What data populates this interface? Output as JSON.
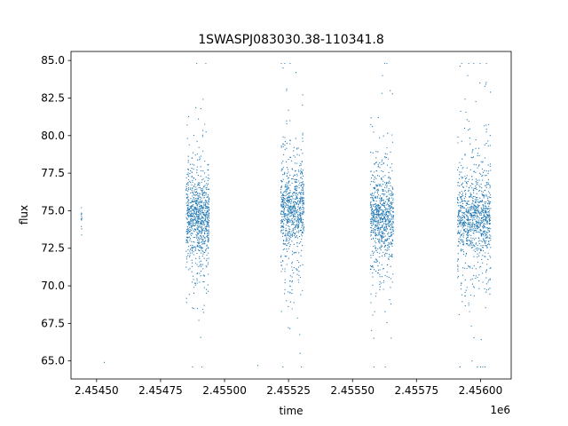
{
  "chart_data": {
    "type": "scatter",
    "title": "1SWASPJ083030.38-110341.8",
    "xlabel": "time",
    "ylabel": "flux",
    "x_offset_label": "1e6",
    "xlim": [
      2454400,
      2456120
    ],
    "ylim": [
      63.8,
      85.6
    ],
    "grid": false,
    "x_ticks": [
      2454500,
      2454750,
      2455000,
      2455250,
      2455500,
      2455750,
      2456000
    ],
    "x_tick_labels": [
      "2.45450",
      "2.45475",
      "2.45500",
      "2.45525",
      "2.45550",
      "2.45575",
      "2.45600"
    ],
    "y_ticks": [
      65.0,
      67.5,
      70.0,
      72.5,
      75.0,
      77.5,
      80.0,
      82.5,
      85.0
    ],
    "y_tick_labels": [
      "65.0",
      "67.5",
      "70.0",
      "72.5",
      "75.0",
      "77.5",
      "80.0",
      "82.5",
      "85.0"
    ],
    "series_color": "#1f77b4",
    "clusters": [
      {
        "x_start": 2454440,
        "x_end": 2454442,
        "y_center": 74.5,
        "y_spread": 0.8,
        "points": 12
      },
      {
        "x_start": 2454850,
        "x_end": 2454940,
        "y_center": 74.5,
        "y_spread": 3.0,
        "points": 900
      },
      {
        "x_start": 2455220,
        "x_end": 2455310,
        "y_center": 75.0,
        "y_spread": 3.5,
        "points": 800
      },
      {
        "x_start": 2455570,
        "x_end": 2455660,
        "y_center": 74.5,
        "y_spread": 3.0,
        "points": 800
      },
      {
        "x_start": 2455910,
        "x_end": 2456040,
        "y_center": 74.5,
        "y_spread": 3.2,
        "points": 1000
      }
    ],
    "outliers": [
      {
        "x": 2454530,
        "y": 64.9
      },
      {
        "x": 2455130,
        "y": 64.7
      },
      {
        "x": 2455228,
        "y": 64.6
      },
      {
        "x": 2455243,
        "y": 83.1
      },
      {
        "x": 2455617,
        "y": 84.0
      },
      {
        "x": 2455950,
        "y": 84.0
      },
      {
        "x": 2455920,
        "y": 64.6
      }
    ]
  }
}
